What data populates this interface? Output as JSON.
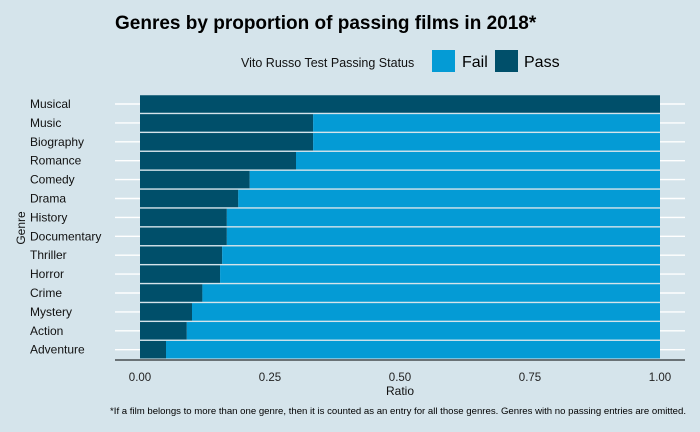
{
  "colors": {
    "background": "#d5e4eb",
    "fail": "#049bd5",
    "pass": "#004f6a",
    "grid": "#ffffff"
  },
  "chart_data": {
    "type": "bar",
    "orientation": "horizontal",
    "stacked": true,
    "title": "Genres by proportion of passing films in 2018*",
    "xlabel": "Ratio",
    "ylabel": "Genre",
    "xlim": [
      0,
      1
    ],
    "x_ticks": [
      "0.00",
      "0.25",
      "0.50",
      "0.75",
      "1.00"
    ],
    "legend": {
      "title": "Vito Russo Test Passing Status",
      "position": "top",
      "entries": [
        "Fail",
        "Pass"
      ]
    },
    "grid": true,
    "categories": [
      "Musical",
      "Music",
      "Biography",
      "Romance",
      "Comedy",
      "Drama",
      "History",
      "Documentary",
      "Thriller",
      "Horror",
      "Crime",
      "Mystery",
      "Action",
      "Adventure"
    ],
    "series": [
      {
        "name": "Pass",
        "values": [
          1.0,
          0.333,
          0.333,
          0.3,
          0.211,
          0.189,
          0.167,
          0.167,
          0.158,
          0.154,
          0.12,
          0.1,
          0.09,
          0.05
        ]
      },
      {
        "name": "Fail",
        "values": [
          0.0,
          0.667,
          0.667,
          0.7,
          0.789,
          0.811,
          0.833,
          0.833,
          0.842,
          0.846,
          0.88,
          0.9,
          0.91,
          0.95
        ]
      }
    ],
    "caption": "*If a film belongs to more than one genre, then it is counted as an entry for all those genres. Genres with no passing entries are omitted."
  }
}
